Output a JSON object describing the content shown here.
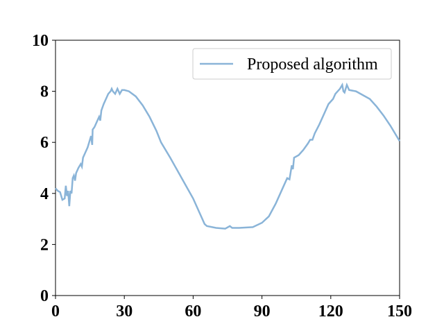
{
  "chart_data": {
    "type": "line",
    "x": [
      0,
      1,
      2,
      3,
      4,
      4.5,
      5,
      5.5,
      6,
      6.5,
      7,
      7.5,
      8,
      8.5,
      9,
      10,
      11,
      11.5,
      12,
      13,
      14,
      15,
      15.5,
      16,
      16.2,
      17,
      18,
      19,
      19.5,
      20,
      21,
      22,
      23,
      24,
      24.5,
      25,
      26,
      27,
      28,
      29,
      30,
      32,
      35,
      38,
      41,
      44,
      46,
      50,
      55,
      60,
      63,
      65,
      66,
      70,
      74,
      76,
      77,
      80,
      86,
      90,
      93,
      96,
      99,
      101,
      102,
      103,
      103.5,
      104,
      106,
      108,
      110,
      111,
      112,
      113,
      115,
      117,
      119,
      121,
      122,
      124,
      125,
      125.5,
      126,
      127,
      128,
      131,
      134,
      137,
      140,
      143,
      146,
      150
    ],
    "series": [
      {
        "name": "Proposed algorithm",
        "color": "#8ab4d8",
        "values": [
          4.2,
          4.1,
          4.05,
          3.75,
          3.8,
          4.3,
          3.9,
          4.1,
          3.5,
          4.1,
          4.0,
          4.6,
          4.7,
          4.5,
          4.8,
          5.0,
          5.15,
          5.05,
          5.4,
          5.6,
          5.8,
          6.1,
          6.25,
          5.9,
          6.5,
          6.6,
          6.8,
          7.0,
          6.85,
          7.25,
          7.5,
          7.7,
          7.9,
          8.0,
          8.1,
          8.0,
          7.9,
          8.1,
          7.9,
          8.05,
          8.05,
          8.0,
          7.8,
          7.45,
          7.0,
          6.45,
          6.0,
          5.4,
          4.6,
          3.8,
          3.2,
          2.8,
          2.72,
          2.65,
          2.62,
          2.72,
          2.65,
          2.65,
          2.68,
          2.85,
          3.1,
          3.6,
          4.2,
          4.6,
          4.55,
          5.1,
          4.95,
          5.4,
          5.5,
          5.7,
          5.95,
          6.1,
          6.1,
          6.35,
          6.7,
          7.1,
          7.5,
          7.7,
          7.9,
          8.1,
          8.25,
          8.0,
          7.95,
          8.25,
          8.05,
          8.0,
          7.85,
          7.7,
          7.4,
          7.05,
          6.65,
          6.05
        ]
      }
    ],
    "xlim": [
      0,
      150
    ],
    "xticks": [
      0,
      30,
      60,
      90,
      120,
      150
    ],
    "ylim": [
      0,
      10
    ],
    "yticks": [
      0,
      2,
      4,
      6,
      8,
      10
    ],
    "legend": "upper right"
  }
}
